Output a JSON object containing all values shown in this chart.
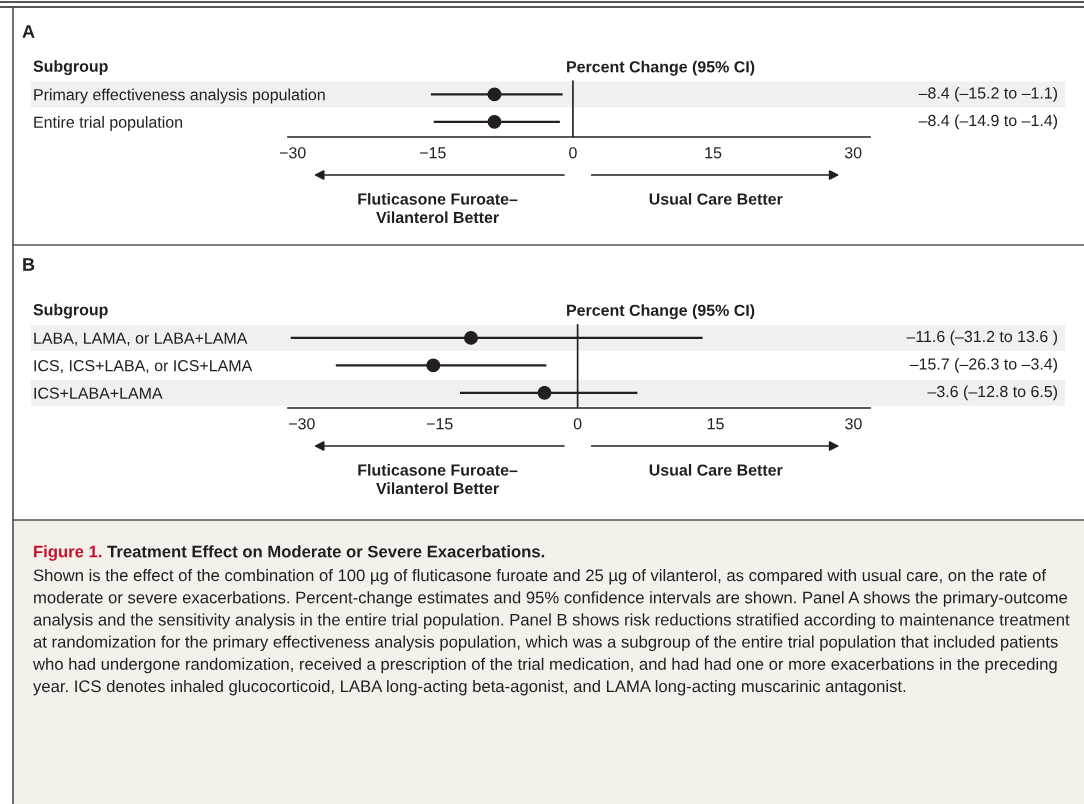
{
  "chart_data": [
    {
      "type": "scatter",
      "orientation": "horizontal",
      "title": "Percent Change (95% CI)",
      "annotations": [
        "A",
        "Subgroup",
        "Fluticasone Furoate–\nVilanterol Better",
        "Usual Care Better"
      ],
      "categories": [
        "Primary effectiveness analysis population",
        "Entire trial population"
      ],
      "values": [
        -8.4,
        -8.4
      ],
      "errors": [
        [
          -15.2,
          -1.1
        ],
        [
          -14.9,
          -1.4
        ]
      ],
      "value_labels": [
        "–8.4 (–15.2 to –1.1)",
        "–8.4 (–14.9 to –1.4)"
      ],
      "color": "#231f20",
      "marker": "circle",
      "grid": false,
      "tick_labels": "x",
      "xlim": [
        -30.5,
        31.8
      ],
      "xticks": [
        -30,
        -15,
        0,
        15,
        30
      ],
      "ref_lines": [
        {
          "axis": "x",
          "value": 0,
          "label": null
        }
      ]
    },
    {
      "type": "scatter",
      "orientation": "horizontal",
      "title": "Percent Change (95% CI)",
      "annotations": [
        "B",
        "Subgroup",
        "Fluticasone Furoate–\nVilanterol Better",
        "Usual Care Better"
      ],
      "categories": [
        "LABA, LAMA, or LABA+LAMA",
        "ICS, ICS+LABA, or ICS+LAMA",
        "ICS+LABA+LAMA"
      ],
      "values": [
        -11.6,
        -15.7,
        -3.6
      ],
      "errors": [
        [
          -31.2,
          13.6
        ],
        [
          -26.3,
          -3.4
        ],
        [
          -12.8,
          6.5
        ]
      ],
      "value_labels": [
        "–11.6 (–31.2 to 13.6 )",
        "–15.7 (–26.3 to –3.4)",
        "–3.6 (–12.8 to 6.5)"
      ],
      "color": "#231f20",
      "marker": "circle",
      "grid": false,
      "tick_labels": "x",
      "xlim": [
        -31.5,
        31.8
      ],
      "xticks": [
        -30,
        -15,
        0,
        15,
        30
      ],
      "ref_lines": [
        {
          "axis": "x",
          "value": 0,
          "label": null
        }
      ]
    },
    {
      "type": "other",
      "title": "Figure 1.",
      "subtitle": "Treatment Effect on Moderate or Severe Exacerbations.",
      "annotations": [
        "Shown is the effect of the combination of 100 µg of fluticasone furoate and 25 µg of vilanterol, as compared with usual care, on the rate of moderate or severe exacerbations. Percent-change estimates and 95% confidence intervals are shown. Panel A shows the primary-outcome analysis and the sensitivity analysis in the entire trial population. Panel B shows risk reductions stratified according to maintenance treatment at randomization for the primary effectiveness analysis population, which was a subgroup of the entire trial population that included patients who had undergone randomization, received a prescription of the trial medication, and had had one or more exacerbations in the preceding year. ICS denotes inhaled glucocorticoid, LABA long-acting beta-agonist, and LAMA long-acting muscarinic antagonist."
      ]
    }
  ]
}
